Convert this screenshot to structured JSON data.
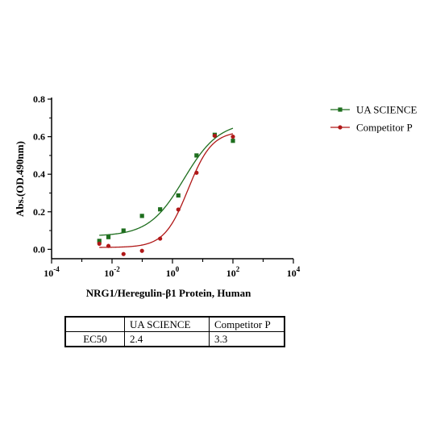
{
  "chart_data": {
    "type": "scatter",
    "title": "",
    "xlabel": "NRG1/Heregulin-β1 Protein, Human",
    "ylabel": "Abs.(OD.490nm)",
    "x_scale": "log",
    "xlim": [
      0.0001,
      10000
    ],
    "ylim": [
      -0.05,
      0.8
    ],
    "y_ticks": [
      0.0,
      0.2,
      0.4,
      0.6,
      0.8
    ],
    "y_tick_labels": [
      "0.0",
      "0.2",
      "0.4",
      "0.6",
      "0.8"
    ],
    "x_ticks": [
      0.0001,
      0.01,
      1,
      100,
      10000
    ],
    "x_tick_labels": [
      {
        "base": "10",
        "exp": "-4"
      },
      {
        "base": "10",
        "exp": "-2"
      },
      {
        "base": "10",
        "exp": "0"
      },
      {
        "base": "10",
        "exp": "2"
      },
      {
        "base": "10",
        "exp": "4"
      }
    ],
    "legend_position": "top-right",
    "series": [
      {
        "name": "UA SCIENCE",
        "color": "#1e6e1e",
        "marker": "square",
        "x": [
          0.0038,
          0.0076,
          0.024,
          0.098,
          0.39,
          1.56,
          6.25,
          25,
          100
        ],
        "y": [
          0.045,
          0.065,
          0.1,
          0.178,
          0.213,
          0.287,
          0.5,
          0.61,
          0.578
        ],
        "fit": {
          "bottom": 0.07,
          "top": 0.68,
          "ec50": 2.4,
          "hill": 0.75
        }
      },
      {
        "name": "Competitor P",
        "color": "#b01818",
        "marker": "circle",
        "x": [
          0.0038,
          0.0076,
          0.024,
          0.098,
          0.39,
          1.56,
          6.25,
          25,
          100
        ],
        "y": [
          0.03,
          0.018,
          -0.025,
          -0.008,
          0.057,
          0.212,
          0.408,
          0.605,
          0.6
        ],
        "fit": {
          "bottom": 0.01,
          "top": 0.63,
          "ec50": 3.3,
          "hill": 1.1
        }
      }
    ]
  },
  "ec50_table": {
    "header": [
      "",
      "UA SCIENCE",
      "Competitor P"
    ],
    "row_label": "EC50",
    "values": [
      "2.4",
      "3.3"
    ]
  }
}
